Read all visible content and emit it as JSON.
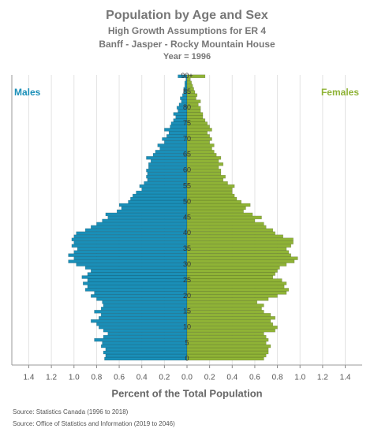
{
  "chart_data": {
    "type": "pyramid",
    "title": "Population by Age and Sex",
    "subtitle": [
      "High Growth Assumptions for ER 4",
      "Banff - Jasper - Rocky Mountain House",
      "Year = 1996"
    ],
    "xlabel": "Percent of the Total Population",
    "sources": [
      "Source: Statistics Canada (1996 to 2018)",
      "Source: Office of Statistics and Information (2019 to 2046)"
    ],
    "categories": [
      "0",
      null,
      null,
      null,
      null,
      "5",
      null,
      null,
      null,
      null,
      "10",
      null,
      null,
      null,
      null,
      "15",
      null,
      null,
      null,
      null,
      "20",
      null,
      null,
      null,
      null,
      "25",
      null,
      null,
      null,
      null,
      "30",
      null,
      null,
      null,
      null,
      "35",
      null,
      null,
      null,
      null,
      "40",
      null,
      null,
      null,
      null,
      "45",
      null,
      null,
      null,
      null,
      "50",
      null,
      null,
      null,
      null,
      "55",
      null,
      null,
      null,
      null,
      "60",
      null,
      null,
      null,
      null,
      "65",
      null,
      null,
      null,
      null,
      "70",
      null,
      null,
      null,
      null,
      "75",
      null,
      null,
      null,
      null,
      "80",
      null,
      null,
      null,
      null,
      "85",
      null,
      null,
      null,
      null,
      "90+"
    ],
    "series": [
      {
        "name": "Males",
        "side": "left",
        "color": "#1a8fb8",
        "values": [
          0.73,
          0.72,
          0.74,
          0.72,
          0.76,
          0.75,
          0.82,
          0.74,
          0.7,
          0.74,
          0.78,
          0.8,
          0.85,
          0.78,
          0.76,
          0.82,
          0.76,
          0.74,
          0.75,
          0.8,
          0.85,
          0.82,
          0.9,
          0.88,
          0.92,
          0.88,
          0.93,
          0.88,
          0.85,
          0.9,
          0.98,
          1.05,
          1.0,
          1.05,
          1.0,
          0.97,
          1.02,
          1.0,
          1.02,
          1.0,
          0.98,
          0.9,
          0.85,
          0.8,
          0.75,
          0.7,
          0.72,
          0.62,
          0.58,
          0.6,
          0.52,
          0.5,
          0.48,
          0.45,
          0.4,
          0.42,
          0.38,
          0.35,
          0.36,
          0.35,
          0.36,
          0.34,
          0.34,
          0.32,
          0.36,
          0.3,
          0.28,
          0.24,
          0.26,
          0.2,
          0.22,
          0.18,
          0.16,
          0.2,
          0.15,
          0.14,
          0.12,
          0.1,
          0.12,
          0.08,
          0.09,
          0.07,
          0.05,
          0.06,
          0.04,
          0.03,
          0.03,
          0.02,
          0.02,
          0.01,
          0.08
        ]
      },
      {
        "name": "Females",
        "side": "right",
        "color": "#8fb336",
        "values": [
          0.68,
          0.7,
          0.72,
          0.72,
          0.74,
          0.7,
          0.72,
          0.7,
          0.68,
          0.78,
          0.8,
          0.76,
          0.74,
          0.78,
          0.74,
          0.68,
          0.66,
          0.68,
          0.62,
          0.72,
          0.8,
          0.88,
          0.9,
          0.86,
          0.88,
          0.84,
          0.76,
          0.78,
          0.8,
          0.82,
          0.88,
          0.95,
          0.98,
          0.92,
          0.9,
          0.88,
          0.92,
          0.94,
          0.94,
          0.85,
          0.78,
          0.76,
          0.7,
          0.68,
          0.6,
          0.66,
          0.58,
          0.5,
          0.52,
          0.56,
          0.48,
          0.44,
          0.42,
          0.4,
          0.4,
          0.42,
          0.36,
          0.32,
          0.34,
          0.3,
          0.3,
          0.28,
          0.32,
          0.28,
          0.3,
          0.26,
          0.24,
          0.22,
          0.24,
          0.2,
          0.22,
          0.2,
          0.18,
          0.22,
          0.2,
          0.18,
          0.16,
          0.14,
          0.14,
          0.12,
          0.12,
          0.1,
          0.12,
          0.08,
          0.09,
          0.07,
          0.06,
          0.05,
          0.04,
          0.03,
          0.16
        ]
      }
    ],
    "xlim": [
      0,
      1.55
    ],
    "xticks": [
      {
        "value": 0,
        "label": "0.0"
      },
      0.2,
      0.4,
      0.6,
      0.8,
      {
        "value": 1,
        "label": "1.0"
      },
      1.2,
      1.4
    ],
    "grid": true
  }
}
